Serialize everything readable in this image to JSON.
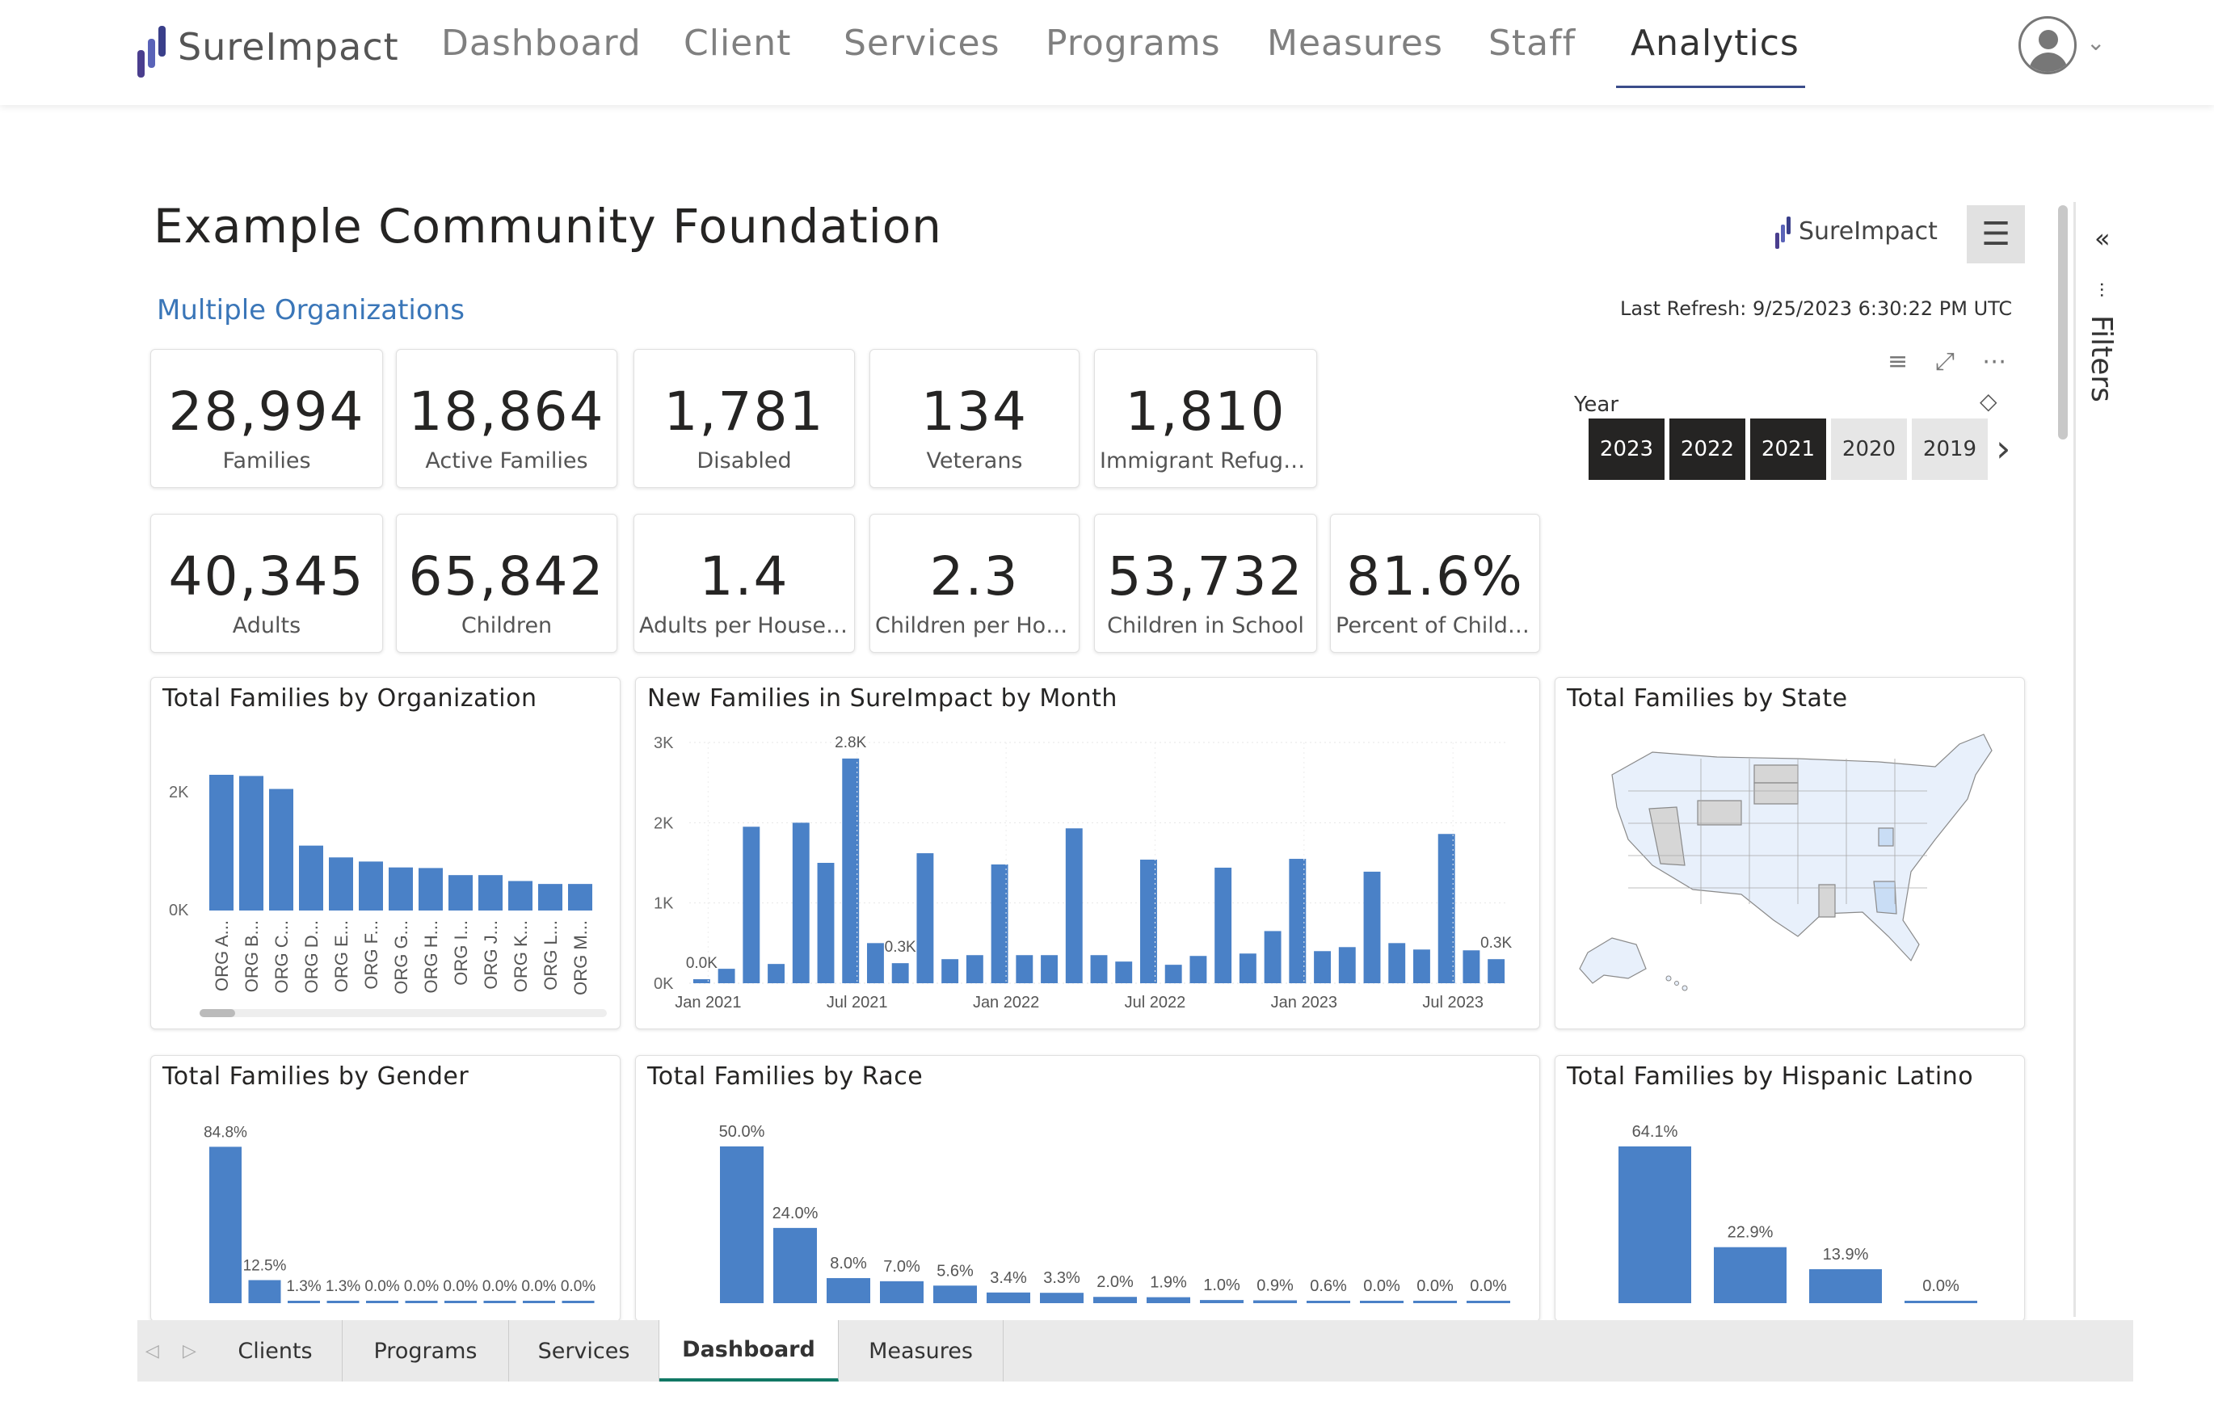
{
  "brand": {
    "name": "SureImpact"
  },
  "nav": {
    "items": [
      "Dashboard",
      "Client",
      "Services",
      "Programs",
      "Measures",
      "Staff",
      "Analytics"
    ],
    "active": "Analytics"
  },
  "report": {
    "title": "Example Community Foundation",
    "org_label": "Multiple Organizations",
    "brand_mini": "SureImpact",
    "last_refresh": "Last Refresh: 9/25/2023 6:30:22 PM UTC",
    "year_label": "Year",
    "years": [
      {
        "label": "2023",
        "selected": true
      },
      {
        "label": "2022",
        "selected": true
      },
      {
        "label": "2021",
        "selected": true
      },
      {
        "label": "2020",
        "selected": false
      },
      {
        "label": "2019",
        "selected": false
      }
    ],
    "filters_label": "Filters",
    "accent_color": "#4a81c7"
  },
  "kpis_row1": [
    {
      "value": "28,994",
      "label": "Families"
    },
    {
      "value": "18,864",
      "label": "Active Families"
    },
    {
      "value": "1,781",
      "label": "Disabled"
    },
    {
      "value": "134",
      "label": "Veterans"
    },
    {
      "value": "1,810",
      "label": "Immigrant Refugees"
    }
  ],
  "kpis_row2": [
    {
      "value": "40,345",
      "label": "Adults"
    },
    {
      "value": "65,842",
      "label": "Children"
    },
    {
      "value": "1.4",
      "label": "Adults per Househ..."
    },
    {
      "value": "2.3",
      "label": "Children per Hous..."
    },
    {
      "value": "53,732",
      "label": "Children in School"
    },
    {
      "value": "81.6%",
      "label": "Percent of Childre..."
    }
  ],
  "chart_data": [
    {
      "type": "bar",
      "title": "Total Families by Organization",
      "categories": [
        "ORG A...",
        "ORG B...",
        "ORG C...",
        "ORG D...",
        "ORG E...",
        "ORG F...",
        "ORG G...",
        "ORG H...",
        "ORG I...",
        "ORG J...",
        "ORG K...",
        "ORG L...",
        "ORG M..."
      ],
      "values": [
        2300,
        2280,
        2060,
        1100,
        900,
        830,
        730,
        720,
        600,
        600,
        500,
        450,
        450
      ],
      "yticks": [
        "0K",
        "2K"
      ],
      "ylim": [
        0,
        2300
      ]
    },
    {
      "type": "bar",
      "title": "New Families in SureImpact by Month",
      "values": [
        50,
        180,
        1950,
        240,
        2000,
        1500,
        2800,
        500,
        250,
        1620,
        300,
        350,
        1480,
        350,
        350,
        1930,
        350,
        270,
        1540,
        230,
        340,
        1440,
        370,
        650,
        1550,
        400,
        450,
        1390,
        500,
        420,
        1860,
        410,
        300
      ],
      "data_labels": [
        {
          "index": 0,
          "text": "0.0K"
        },
        {
          "index": 6,
          "text": "2.8K"
        },
        {
          "index": 8,
          "text": "0.3K"
        },
        {
          "index": 32,
          "text": "0.3K"
        }
      ],
      "xticks": [
        "Jan 2021",
        "Jul 2021",
        "Jan 2022",
        "Jul 2022",
        "Jan 2023",
        "Jul 2023"
      ],
      "yticks": [
        "0K",
        "1K",
        "2K",
        "3K"
      ],
      "ylim": [
        0,
        3000
      ]
    },
    {
      "type": "map",
      "title": "Total Families by State"
    },
    {
      "type": "bar",
      "title": "Total Families by Gender",
      "values": [
        84.8,
        12.5,
        1.3,
        1.3,
        0.0,
        0.0,
        0.0,
        0.0,
        0.0,
        0.0
      ],
      "labels": [
        "84.8%",
        "12.5%",
        "1.3%",
        "1.3%",
        "0.0%",
        "0.0%",
        "0.0%",
        "0.0%",
        "0.0%",
        "0.0%"
      ],
      "ylim": [
        0,
        85
      ]
    },
    {
      "type": "bar",
      "title": "Total Families by Race",
      "values": [
        50.0,
        24.0,
        8.0,
        7.0,
        5.6,
        3.4,
        3.3,
        2.0,
        1.9,
        1.0,
        0.9,
        0.6,
        0.0,
        0.0,
        0.0
      ],
      "labels": [
        "50.0%",
        "24.0%",
        "8.0%",
        "7.0%",
        "5.6%",
        "3.4%",
        "3.3%",
        "2.0%",
        "1.9%",
        "1.0%",
        "0.9%",
        "0.6%",
        "0.0%",
        "0.0%",
        "0.0%"
      ],
      "ylim": [
        0,
        50
      ]
    },
    {
      "type": "bar",
      "title": "Total Families by Hispanic Latino",
      "values": [
        64.1,
        22.9,
        13.9,
        0.0
      ],
      "labels": [
        "64.1%",
        "22.9%",
        "13.9%",
        "0.0%"
      ],
      "ylim": [
        0,
        64.1
      ]
    }
  ],
  "tabs": [
    {
      "label": "Clients",
      "active": false
    },
    {
      "label": "Programs",
      "active": false
    },
    {
      "label": "Services",
      "active": false
    },
    {
      "label": "Dashboard",
      "active": true
    },
    {
      "label": "Measures",
      "active": false
    }
  ]
}
